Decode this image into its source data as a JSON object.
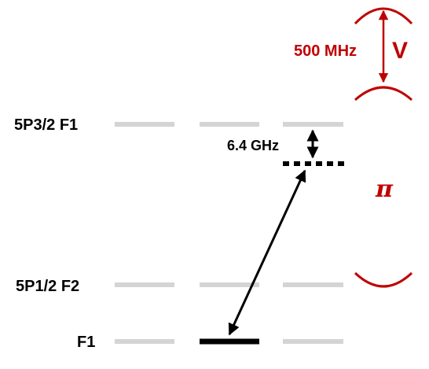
{
  "levels": {
    "upper": "5P3/2 F1",
    "middle": "5P1/2 F2",
    "ground": "F1"
  },
  "annotations": {
    "detuning": "6.4 GHz",
    "splitting": "500 MHz",
    "v_label": "V",
    "pi_label": "π"
  },
  "colors": {
    "level_line": "#d4d4d4",
    "accent": "#c00000",
    "ink": "#000000"
  }
}
